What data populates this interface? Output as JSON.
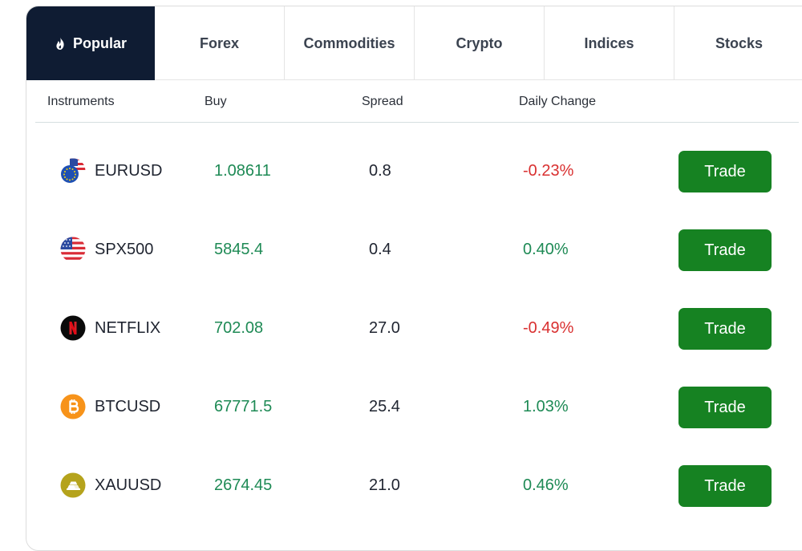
{
  "tabs": [
    {
      "label": "Popular",
      "active": true,
      "icon": "fire-icon"
    },
    {
      "label": "Forex",
      "active": false
    },
    {
      "label": "Commodities",
      "active": false
    },
    {
      "label": "Crypto",
      "active": false
    },
    {
      "label": "Indices",
      "active": false
    },
    {
      "label": "Stocks",
      "active": false
    }
  ],
  "columns": {
    "instruments": "Instruments",
    "buy": "Buy",
    "spread": "Spread",
    "daily_change": "Daily Change"
  },
  "rows": [
    {
      "name": "EURUSD",
      "buy": "1.08611",
      "spread": "0.8",
      "change": "-0.23%",
      "direction": "negative",
      "icon": "eu-us-flag-icon",
      "action": "Trade"
    },
    {
      "name": "SPX500",
      "buy": "5845.4",
      "spread": "0.4",
      "change": "0.40%",
      "direction": "positive",
      "icon": "us-flag-icon",
      "action": "Trade"
    },
    {
      "name": "NETFLIX",
      "buy": "702.08",
      "spread": "27.0",
      "change": "-0.49%",
      "direction": "negative",
      "icon": "netflix-logo-icon",
      "action": "Trade"
    },
    {
      "name": "BTCUSD",
      "buy": "67771.5",
      "spread": "25.4",
      "change": "1.03%",
      "direction": "positive",
      "icon": "bitcoin-icon",
      "action": "Trade"
    },
    {
      "name": "XAUUSD",
      "buy": "2674.45",
      "spread": "21.0",
      "change": "0.46%",
      "direction": "positive",
      "icon": "gold-bars-icon",
      "action": "Trade"
    }
  ],
  "colors": {
    "active_tab_bg": "#0f1c33",
    "trade_button": "#168222",
    "positive": "#1e8a55",
    "negative": "#d93030"
  }
}
